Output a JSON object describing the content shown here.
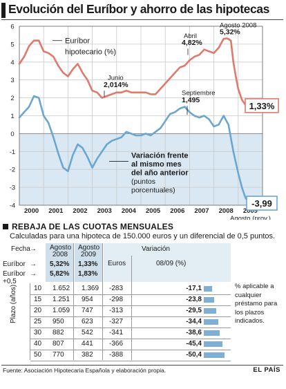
{
  "title": "Evolución del Euríbor y ahorro de las hipotecas",
  "chart_data": {
    "type": "line",
    "y_ticks": [
      6,
      5,
      4,
      3,
      2,
      1,
      0,
      -1,
      -2,
      -3,
      -4
    ],
    "x_categories": [
      "2000",
      "2001",
      "2002",
      "2003",
      "2004",
      "2005",
      "2006",
      "2007",
      "2008",
      "2009"
    ],
    "grid": true,
    "series": [
      {
        "name": "Euríbor hipotecario (%)",
        "color": "#e0786c",
        "x": [
          2000.0,
          2000.2,
          2000.4,
          2000.6,
          2000.8,
          2001.0,
          2001.2,
          2001.4,
          2001.6,
          2001.8,
          2002.0,
          2002.2,
          2002.4,
          2002.6,
          2002.8,
          2003.0,
          2003.2,
          2003.4,
          2003.6,
          2003.8,
          2004.0,
          2004.2,
          2004.4,
          2004.6,
          2004.8,
          2005.0,
          2005.2,
          2005.4,
          2005.6,
          2005.8,
          2006.0,
          2006.2,
          2006.4,
          2006.6,
          2006.8,
          2007.0,
          2007.2,
          2007.4,
          2007.6,
          2007.8,
          2008.0,
          2008.2,
          2008.4,
          2008.55,
          2008.7,
          2008.8,
          2008.9,
          2009.0,
          2009.15,
          2009.3,
          2009.45,
          2009.58
        ],
        "values": [
          3.9,
          4.3,
          4.9,
          5.2,
          5.2,
          4.6,
          4.5,
          4.3,
          3.8,
          3.4,
          3.2,
          3.6,
          3.9,
          3.4,
          3.0,
          2.4,
          2.3,
          2.0,
          2.1,
          2.2,
          2.3,
          2.3,
          2.4,
          2.3,
          2.3,
          2.3,
          2.3,
          2.2,
          2.2,
          2.5,
          2.8,
          3.1,
          3.4,
          3.7,
          3.8,
          4.1,
          4.3,
          4.4,
          4.7,
          4.6,
          4.5,
          4.8,
          5.3,
          5.32,
          5.2,
          4.0,
          3.2,
          2.5,
          1.9,
          1.6,
          1.45,
          1.33
        ]
      },
      {
        "name": "Variación frente al mismo mes del año anterior (puntos porcentuales)",
        "color": "#6aa6d2",
        "x": [
          2000.0,
          2000.2,
          2000.4,
          2000.6,
          2000.8,
          2001.0,
          2001.2,
          2001.4,
          2001.6,
          2001.8,
          2002.0,
          2002.2,
          2002.4,
          2002.6,
          2002.8,
          2003.0,
          2003.2,
          2003.4,
          2003.6,
          2003.8,
          2004.0,
          2004.2,
          2004.4,
          2004.6,
          2004.8,
          2005.0,
          2005.2,
          2005.4,
          2005.6,
          2005.8,
          2006.0,
          2006.2,
          2006.4,
          2006.6,
          2006.8,
          2007.0,
          2007.2,
          2007.4,
          2007.6,
          2007.8,
          2008.0,
          2008.2,
          2008.4,
          2008.6,
          2008.8,
          2009.0,
          2009.15,
          2009.3,
          2009.45,
          2009.58
        ],
        "values": [
          0.9,
          1.2,
          1.5,
          2.1,
          2.0,
          1.0,
          0.6,
          -0.2,
          -1.1,
          -1.9,
          -2.1,
          -1.2,
          -0.6,
          -0.8,
          -1.3,
          -1.9,
          -1.4,
          -1.0,
          -0.6,
          -0.4,
          -0.3,
          -0.2,
          0.1,
          0.0,
          -0.1,
          -0.1,
          0.0,
          -0.1,
          0.1,
          0.3,
          0.7,
          1.1,
          1.2,
          1.4,
          1.5,
          1.2,
          1.0,
          0.9,
          1.0,
          0.8,
          0.4,
          0.5,
          1.0,
          0.5,
          -1.0,
          -2.2,
          -3.0,
          -3.6,
          -3.85,
          -3.99
        ]
      }
    ],
    "annotations": {
      "june_label": "Junio",
      "june_value": "2,014%",
      "abril_label": "Abril",
      "abril_value": "4,82%",
      "agosto08_label": "Agosto 2008",
      "agosto08_value": "5,32%",
      "septiembre_label": "Septiembre",
      "septiembre_value": "1,495",
      "latest_euribor": "1,33%",
      "latest_variation": "-3,99",
      "x_end_label": "Agosto (prov.)",
      "euribor_legend": "Euríbor hipotecario (%)",
      "variation_legend": [
        "Variación frente",
        "al mismo mes",
        "del año anterior",
        "(puntos",
        "porcentuales)"
      ]
    }
  },
  "table": {
    "section_title": "REBAJA DE LAS CUOTAS MENSUALES",
    "subtitle": "Calculadas para una hipoteca de 150.000 euros y un diferencial de 0,5 puntos.",
    "fecha_label": "Fecha",
    "euribor_label": "Euríbor",
    "euribor_plus_label": "Euríbor",
    "plus_label": "+0,5",
    "arrow": "→",
    "col_a_label": "Agosto 2008",
    "col_b_label": "Agosto 2009",
    "variation_header": "Variación",
    "euros_header": "Euros",
    "pct_header": "08/09 (%)",
    "euribor_a": "5,32%",
    "euribor_b": "1,33%",
    "plus_a": "5,82%",
    "plus_b": "1,83%",
    "plazo_label": "Plazo (años)",
    "rows": [
      {
        "years": "10",
        "a": "1.652",
        "b": "1.369",
        "euros": "-283",
        "pct": "-17,1",
        "pct_value": 17.1
      },
      {
        "years": "15",
        "a": "1.251",
        "b": "954",
        "euros": "-298",
        "pct": "-23,8",
        "pct_value": 23.8
      },
      {
        "years": "20",
        "a": "1.059",
        "b": "747",
        "euros": "-313",
        "pct": "-29,5",
        "pct_value": 29.5
      },
      {
        "years": "25",
        "a": "950",
        "b": "623",
        "euros": "-327",
        "pct": "-34,4",
        "pct_value": 34.4
      },
      {
        "years": "30",
        "a": "882",
        "b": "542",
        "euros": "-341",
        "pct": "-38,6",
        "pct_value": 38.6
      },
      {
        "years": "40",
        "a": "807",
        "b": "441",
        "euros": "-366",
        "pct": "-45,4",
        "pct_value": 45.4
      },
      {
        "years": "50",
        "a": "770",
        "b": "382",
        "euros": "-388",
        "pct": "-50,4",
        "pct_value": 50.4
      }
    ],
    "note": "% aplicable a cualquier préstamo para los plazos indicados."
  },
  "footer": {
    "source": "Fuente: Asociación Hipotecaria Española y elaboración propia.",
    "brand": "EL PAÍS"
  }
}
